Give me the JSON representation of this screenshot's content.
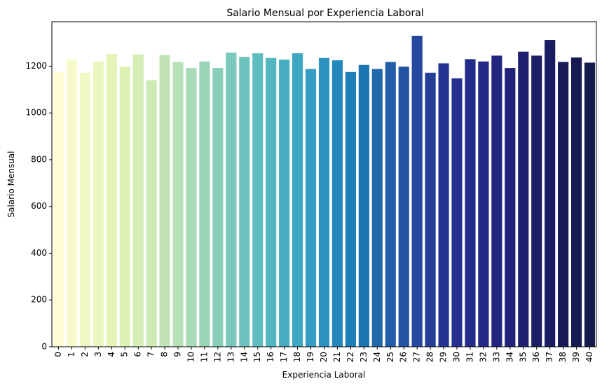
{
  "chart_data": {
    "type": "bar",
    "title": "Salario Mensual por Experiencia Laboral",
    "xlabel": "Experiencia Laboral",
    "ylabel": "Salario Mensual",
    "ylim": [
      0,
      1390
    ],
    "yticks": [
      0,
      200,
      400,
      600,
      800,
      1000,
      1200
    ],
    "grid": false,
    "legend": "none",
    "palette": "YlGnBu",
    "categories": [
      "0",
      "1",
      "2",
      "3",
      "4",
      "5",
      "6",
      "7",
      "8",
      "9",
      "10",
      "11",
      "12",
      "13",
      "14",
      "15",
      "16",
      "17",
      "18",
      "19",
      "20",
      "21",
      "22",
      "23",
      "24",
      "25",
      "26",
      "27",
      "28",
      "29",
      "30",
      "31",
      "32",
      "33",
      "34",
      "35",
      "36",
      "37",
      "38",
      "39",
      "40"
    ],
    "values": [
      1175,
      1230,
      1172,
      1220,
      1252,
      1198,
      1250,
      1140,
      1248,
      1218,
      1192,
      1220,
      1192,
      1258,
      1240,
      1255,
      1235,
      1228,
      1255,
      1188,
      1235,
      1225,
      1175,
      1205,
      1188,
      1218,
      1198,
      1330,
      1172,
      1212,
      1148,
      1230,
      1220,
      1245,
      1192,
      1262,
      1245,
      1312,
      1218,
      1237,
      1215
    ],
    "colors": [
      "#fffed6",
      "#f7fbcc",
      "#f0f9c4",
      "#eaf7be",
      "#e4f4b6",
      "#dcf1b2",
      "#d5eeb3",
      "#cde9b4",
      "#c2e4b5",
      "#b6e0b6",
      "#a8dab8",
      "#9bd5b9",
      "#8acfba",
      "#7bc9bd",
      "#6dc3be",
      "#5fbdc0",
      "#52b6c1",
      "#47aec2",
      "#3ea5c2",
      "#359dc1",
      "#2c92c0",
      "#2488bc",
      "#1e7eb7",
      "#1c74b2",
      "#1f69ad",
      "#215ea8",
      "#2354a3",
      "#24499e",
      "#253f99",
      "#253494",
      "#24308f",
      "#232c8a",
      "#222884",
      "#21257d",
      "#1f2277",
      "#1d206f",
      "#1b1f67",
      "#191d5f",
      "#181b58",
      "#161a51",
      "#141a4b"
    ]
  }
}
